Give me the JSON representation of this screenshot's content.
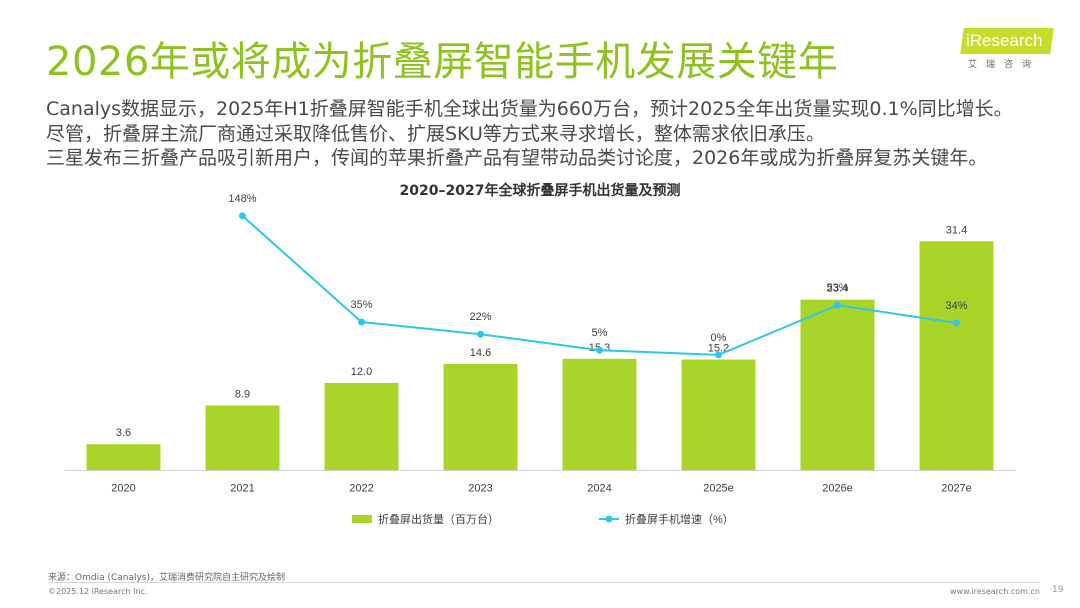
{
  "slide": {
    "title": "2026年或将成为折叠屏智能手机发展关键年",
    "summary": [
      "Canalys数据显示，2025年H1折叠屏智能手机全球出货量为660万台，预计2025全年出货量实现0.1%同比增长。",
      "尽管，折叠屏主流厂商通过采取降低售价、扩展SKU等方式来寻求增长，整体需求依旧承压。",
      "三星发布三折叠产品吸引新用户，传闻的苹果折叠产品有望带动品类讨论度，2026年或成为折叠屏复苏关键年。"
    ]
  },
  "logo": {
    "text": "iResearch",
    "subtitle": "艾瑞咨询"
  },
  "colors": {
    "accent": "#8dc21f",
    "bar": "#a8d42a",
    "line": "#2fc7e8"
  },
  "chart_data": {
    "type": "bar",
    "title": "2020–2027年全球折叠屏手机出货量及预测",
    "categories": [
      "2020",
      "2021",
      "2022",
      "2023",
      "2024",
      "2025e",
      "2026e",
      "2027e"
    ],
    "series": [
      {
        "name": "折叠屏出货量（百万台）",
        "type": "bar",
        "values": [
          3.6,
          8.9,
          12.0,
          14.6,
          15.3,
          15.2,
          23.4,
          31.4
        ],
        "labels": [
          "3.6",
          "8.9",
          "12.0",
          "14.6",
          "15.3",
          "15.2",
          "23.4",
          "31.4"
        ]
      },
      {
        "name": "折叠屏手机增速（%）",
        "type": "line",
        "values": [
          null,
          148,
          35,
          22,
          5,
          0,
          53,
          34
        ],
        "labels": [
          "",
          "148%",
          "35%",
          "22%",
          "5%",
          "0%",
          "53%",
          "34%"
        ]
      }
    ],
    "ylim": [
      0,
      35
    ],
    "y2lim": [
      -130,
      150
    ],
    "legend": "bottom-center",
    "grid": false
  },
  "footer": {
    "source": "来源：Omdia (Canalys)，艾瑞消费研究院自主研究及绘制",
    "copyright": "©2025.12 iResearch Inc.",
    "website": "www.iresearch.com.cn",
    "page": "19"
  }
}
